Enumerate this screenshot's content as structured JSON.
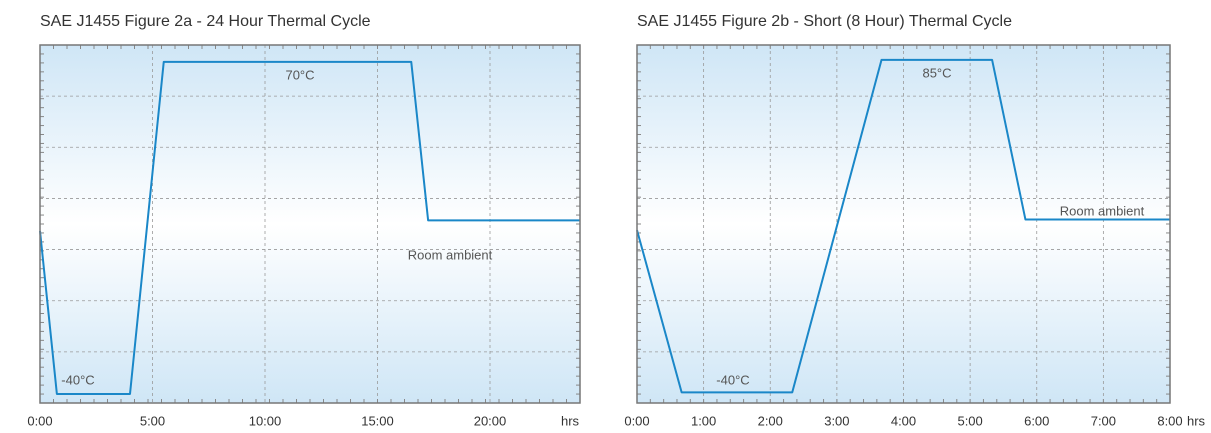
{
  "chart_data": [
    {
      "type": "line",
      "title": "SAE J1455 Figure 2a - 24 Hour Thermal Cycle",
      "x": [
        0,
        0.75,
        4,
        5.5,
        16.5,
        17.25,
        24
      ],
      "values": [
        14,
        -40,
        -40,
        70,
        70,
        17.5,
        17.5
      ],
      "color": "#1a87c8",
      "xlim": [
        0,
        24
      ],
      "ylim": [
        -43,
        75.6
      ],
      "xticks": [
        {
          "value": 0,
          "label": "0:00"
        },
        {
          "value": 5,
          "label": "5:00"
        },
        {
          "value": 10,
          "label": "10:00"
        },
        {
          "value": 15,
          "label": "15:00"
        },
        {
          "value": 20,
          "label": "20:00"
        }
      ],
      "x_unit": "hrs",
      "annotations": [
        "70°C",
        "-40°C",
        "Room ambient"
      ],
      "grid": true
    },
    {
      "type": "line",
      "title": "SAE J1455 Figure 2b - Short (8 Hour) Thermal Cycle",
      "x": [
        0,
        0.67,
        2.33,
        3.67,
        5.33,
        5.83,
        8
      ],
      "values": [
        21,
        -40,
        -40,
        85,
        85,
        25,
        25
      ],
      "color": "#1a87c8",
      "xlim": [
        0,
        8
      ],
      "ylim": [
        -44,
        90.6
      ],
      "xticks": [
        {
          "value": 0,
          "label": "0:00"
        },
        {
          "value": 1,
          "label": "1:00"
        },
        {
          "value": 2,
          "label": "2:00"
        },
        {
          "value": 3,
          "label": "3:00"
        },
        {
          "value": 4,
          "label": "4:00"
        },
        {
          "value": 5,
          "label": "5:00"
        },
        {
          "value": 6,
          "label": "6:00"
        },
        {
          "value": 7,
          "label": "7:00"
        },
        {
          "value": 8,
          "label": "8:00"
        }
      ],
      "x_unit": "hrs",
      "annotations": [
        "85°C",
        "-40°C",
        "Room ambient"
      ],
      "grid": true
    }
  ]
}
